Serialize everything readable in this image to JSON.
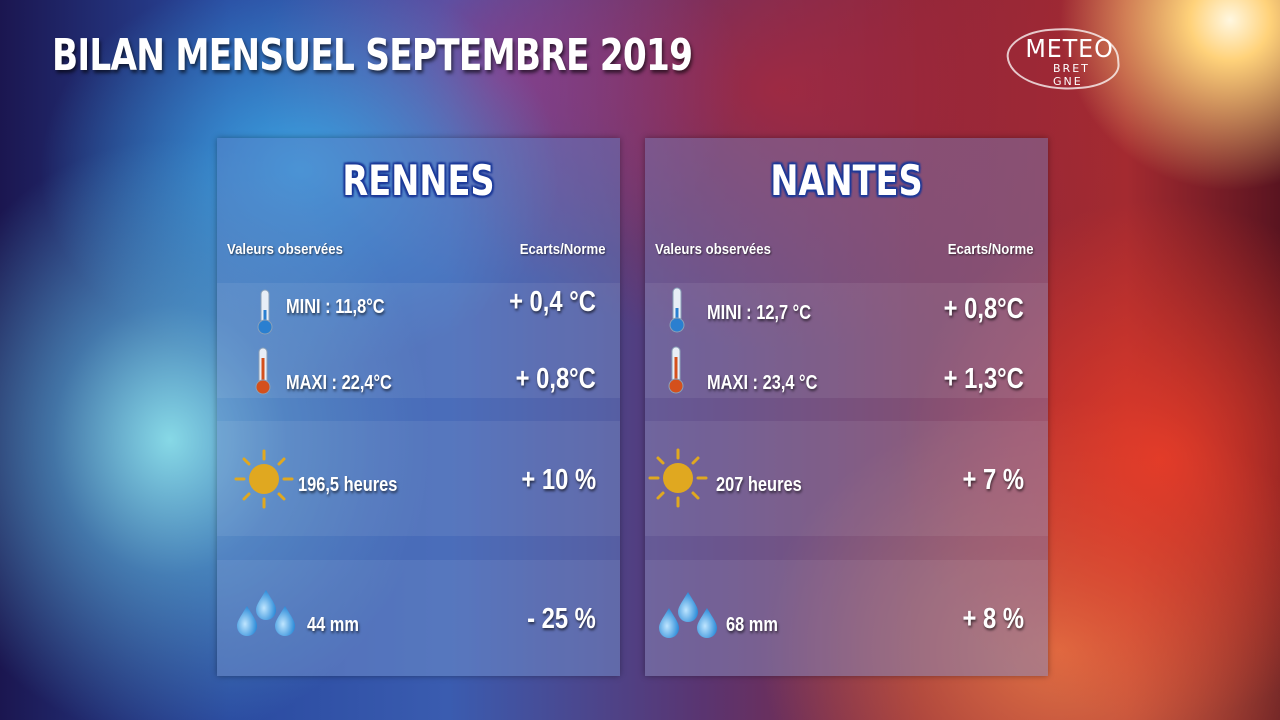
{
  "title": "BILAN MENSUEL SEPTEMBRE 2019",
  "logo": {
    "line1": "METEO",
    "line2": "BRET GNE"
  },
  "headers": {
    "observed": "Valeurs observées",
    "deviation": "Ecarts/Norme"
  },
  "colors": {
    "city_outline": "#1d3a98",
    "sun": "#e0a820",
    "drop": "#4aaee8"
  },
  "cities": [
    {
      "name": "RENNES",
      "mini": "MINI : 11,8°C",
      "mini_dev": "+ 0,4 °C",
      "maxi": "MAXI : 22,4°C",
      "maxi_dev": "+ 0,8°C",
      "sun": "196,5  heures",
      "sun_dev": "+ 10 %",
      "rain": "44 mm",
      "rain_dev": "- 25 %"
    },
    {
      "name": "NANTES",
      "mini": "MINI :  12,7 °C",
      "mini_dev": "+ 0,8°C",
      "maxi": "MAXI : 23,4 °C",
      "maxi_dev": "+ 1,3°C",
      "sun": "207 heures",
      "sun_dev": "+ 7 %",
      "rain": "68  mm",
      "rain_dev": "+ 8 %"
    }
  ]
}
